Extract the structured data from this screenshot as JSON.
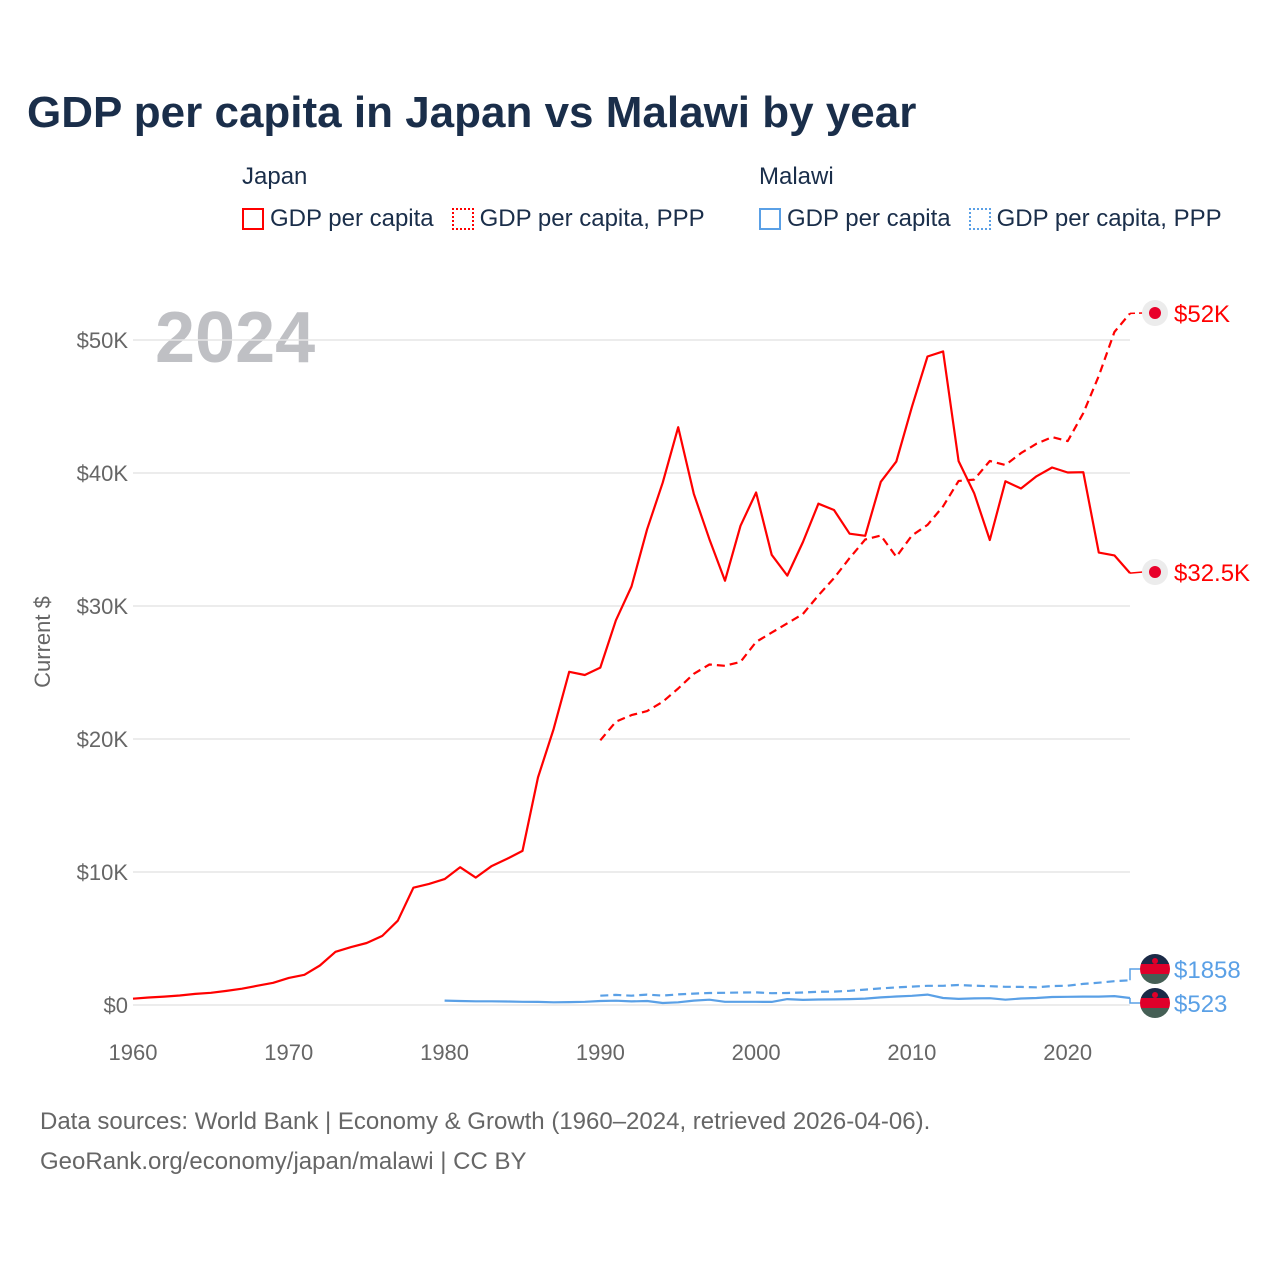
{
  "title": "GDP per capita in Japan vs Malawi by year",
  "year_badge": "2024",
  "legend": {
    "groups": [
      {
        "country": "Japan",
        "color": "#ff0000",
        "items": [
          "GDP per capita",
          "GDP per capita, PPP"
        ]
      },
      {
        "country": "Malawi",
        "color": "#5aa0e6",
        "items": [
          "GDP per capita",
          "GDP per capita, PPP"
        ]
      }
    ]
  },
  "footer": {
    "line1": "Data sources: World Bank | Economy & Growth (1960–2024, retrieved 2026-04-06).",
    "line2": "GeoRank.org/economy/japan/malawi | CC BY"
  },
  "chart_data": {
    "type": "line",
    "title": "GDP per capita in Japan vs Malawi by year",
    "xlabel": "",
    "ylabel": "Current $",
    "xlim": [
      1960,
      2024
    ],
    "ylim": [
      0,
      50000
    ],
    "x_ticks": [
      1960,
      1970,
      1980,
      1990,
      2000,
      2010,
      2020
    ],
    "y_ticks": [
      0,
      10000,
      20000,
      30000,
      40000,
      50000
    ],
    "y_tick_labels": [
      "$0",
      "$10K",
      "$20K",
      "$30K",
      "$40K",
      "$50K"
    ],
    "grid": true,
    "legend_position": "top",
    "series": [
      {
        "name": "Japan GDP per capita",
        "color": "#ff0000",
        "dash": false,
        "start": 1960,
        "end_label": "$32.5K",
        "values": [
          475,
          564,
          633,
          718,
          835,
          919,
          1059,
          1229,
          1451,
          1669,
          2037,
          2272,
          2967,
          3997,
          4354,
          4659,
          5197,
          6335,
          8821,
          9105,
          9463,
          10361,
          9578,
          10425,
          10984,
          11585,
          17112,
          20745,
          25052,
          24813,
          25371,
          28925,
          31464,
          35766,
          39268,
          43440,
          38437,
          35022,
          31903,
          36027,
          38532,
          33846,
          32289,
          34808,
          37688,
          37218,
          35434,
          35275,
          39339,
          40855,
          44968,
          48760,
          49145,
          40898,
          38475,
          34961,
          39375,
          38834,
          39751,
          40416,
          40040,
          40059,
          34017,
          33806,
          32476
        ]
      },
      {
        "name": "Japan GDP per capita, PPP",
        "color": "#ff0000",
        "dash": true,
        "start": 1990,
        "end_label": "$52K",
        "values": [
          19900,
          21300,
          21800,
          22100,
          22800,
          23800,
          24900,
          25600,
          25500,
          25800,
          27300,
          28000,
          28700,
          29400,
          30800,
          32100,
          33600,
          35000,
          35300,
          33700,
          35300,
          36100,
          37500,
          39400,
          39500,
          40900,
          40600,
          41500,
          42200,
          42700,
          42400,
          44500,
          47300,
          50600,
          52000
        ]
      },
      {
        "name": "Malawi GDP per capita",
        "color": "#5aa0e6",
        "dash": false,
        "start": 1980,
        "end_label": "$523",
        "values": [
          330,
          300,
          280,
          280,
          260,
          240,
          230,
          200,
          220,
          240,
          300,
          320,
          270,
          300,
          150,
          200,
          330,
          400,
          240,
          240,
          240,
          230,
          440,
          380,
          410,
          420,
          440,
          480,
          570,
          640,
          690,
          780,
          530,
          460,
          500,
          510,
          400,
          490,
          530,
          600,
          620,
          630,
          630,
          670,
          523
        ]
      },
      {
        "name": "Malawi GDP per capita, PPP",
        "color": "#5aa0e6",
        "dash": true,
        "start": 1990,
        "end_label": "$1858",
        "values": [
          700,
          760,
          700,
          780,
          710,
          800,
          860,
          900,
          920,
          940,
          950,
          890,
          900,
          940,
          990,
          1010,
          1070,
          1160,
          1250,
          1320,
          1380,
          1440,
          1440,
          1500,
          1450,
          1410,
          1370,
          1360,
          1330,
          1420,
          1450,
          1590,
          1680,
          1790,
          1858
        ]
      }
    ]
  }
}
